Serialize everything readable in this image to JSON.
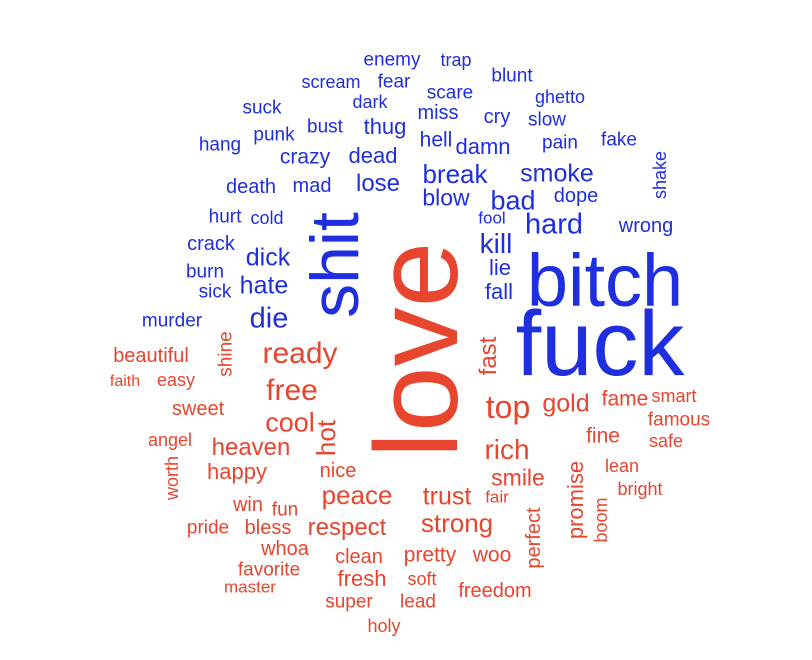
{
  "colors": {
    "negative": "#1f2fe0",
    "positive": "#e8452e",
    "background": "#ffffff"
  },
  "words": [
    {
      "t": "enemy",
      "s": "negative"
    },
    {
      "t": "trap",
      "s": "negative"
    },
    {
      "t": "blunt",
      "s": "negative"
    },
    {
      "t": "scream",
      "s": "negative"
    },
    {
      "t": "fear",
      "s": "negative"
    },
    {
      "t": "scare",
      "s": "negative"
    },
    {
      "t": "ghetto",
      "s": "negative"
    },
    {
      "t": "dark",
      "s": "negative"
    },
    {
      "t": "suck",
      "s": "negative"
    },
    {
      "t": "miss",
      "s": "negative"
    },
    {
      "t": "cry",
      "s": "negative"
    },
    {
      "t": "slow",
      "s": "negative"
    },
    {
      "t": "bust",
      "s": "negative"
    },
    {
      "t": "thug",
      "s": "negative"
    },
    {
      "t": "punk",
      "s": "negative"
    },
    {
      "t": "hang",
      "s": "negative"
    },
    {
      "t": "hell",
      "s": "negative"
    },
    {
      "t": "pain",
      "s": "negative"
    },
    {
      "t": "fake",
      "s": "negative"
    },
    {
      "t": "damn",
      "s": "negative"
    },
    {
      "t": "crazy",
      "s": "negative"
    },
    {
      "t": "dead",
      "s": "negative"
    },
    {
      "t": "shake",
      "s": "negative"
    },
    {
      "t": "break",
      "s": "negative"
    },
    {
      "t": "smoke",
      "s": "negative"
    },
    {
      "t": "death",
      "s": "negative"
    },
    {
      "t": "mad",
      "s": "negative"
    },
    {
      "t": "lose",
      "s": "negative"
    },
    {
      "t": "dope",
      "s": "negative"
    },
    {
      "t": "blow",
      "s": "negative"
    },
    {
      "t": "bad",
      "s": "negative"
    },
    {
      "t": "hurt",
      "s": "negative"
    },
    {
      "t": "cold",
      "s": "negative"
    },
    {
      "t": "shit",
      "s": "negative"
    },
    {
      "t": "fool",
      "s": "negative"
    },
    {
      "t": "hard",
      "s": "negative"
    },
    {
      "t": "wrong",
      "s": "negative"
    },
    {
      "t": "crack",
      "s": "negative"
    },
    {
      "t": "kill",
      "s": "negative"
    },
    {
      "t": "dick",
      "s": "negative"
    },
    {
      "t": "burn",
      "s": "negative"
    },
    {
      "t": "lie",
      "s": "negative"
    },
    {
      "t": "bitch",
      "s": "negative"
    },
    {
      "t": "hate",
      "s": "negative"
    },
    {
      "t": "sick",
      "s": "negative"
    },
    {
      "t": "fall",
      "s": "negative"
    },
    {
      "t": "die",
      "s": "negative"
    },
    {
      "t": "murder",
      "s": "negative"
    },
    {
      "t": "fuck",
      "s": "negative"
    },
    {
      "t": "shine",
      "s": "positive"
    },
    {
      "t": "ready",
      "s": "positive"
    },
    {
      "t": "beautiful",
      "s": "positive"
    },
    {
      "t": "fast",
      "s": "positive"
    },
    {
      "t": "faith",
      "s": "positive"
    },
    {
      "t": "easy",
      "s": "positive"
    },
    {
      "t": "free",
      "s": "positive"
    },
    {
      "t": "love",
      "s": "positive"
    },
    {
      "t": "fame",
      "s": "positive"
    },
    {
      "t": "smart",
      "s": "positive"
    },
    {
      "t": "gold",
      "s": "positive"
    },
    {
      "t": "sweet",
      "s": "positive"
    },
    {
      "t": "top",
      "s": "positive"
    },
    {
      "t": "cool",
      "s": "positive"
    },
    {
      "t": "famous",
      "s": "positive"
    },
    {
      "t": "hot",
      "s": "positive"
    },
    {
      "t": "fine",
      "s": "positive"
    },
    {
      "t": "safe",
      "s": "positive"
    },
    {
      "t": "angel",
      "s": "positive"
    },
    {
      "t": "heaven",
      "s": "positive"
    },
    {
      "t": "rich",
      "s": "positive"
    },
    {
      "t": "lean",
      "s": "positive"
    },
    {
      "t": "happy",
      "s": "positive"
    },
    {
      "t": "nice",
      "s": "positive"
    },
    {
      "t": "worth",
      "s": "positive"
    },
    {
      "t": "smile",
      "s": "positive"
    },
    {
      "t": "promise",
      "s": "positive"
    },
    {
      "t": "bright",
      "s": "positive"
    },
    {
      "t": "peace",
      "s": "positive"
    },
    {
      "t": "trust",
      "s": "positive"
    },
    {
      "t": "win",
      "s": "positive"
    },
    {
      "t": "fun",
      "s": "positive"
    },
    {
      "t": "fair",
      "s": "positive"
    },
    {
      "t": "boom",
      "s": "positive"
    },
    {
      "t": "pride",
      "s": "positive"
    },
    {
      "t": "bless",
      "s": "positive"
    },
    {
      "t": "strong",
      "s": "positive"
    },
    {
      "t": "respect",
      "s": "positive"
    },
    {
      "t": "perfect",
      "s": "positive"
    },
    {
      "t": "whoa",
      "s": "positive"
    },
    {
      "t": "clean",
      "s": "positive"
    },
    {
      "t": "pretty",
      "s": "positive"
    },
    {
      "t": "woo",
      "s": "positive"
    },
    {
      "t": "favorite",
      "s": "positive"
    },
    {
      "t": "master",
      "s": "positive"
    },
    {
      "t": "fresh",
      "s": "positive"
    },
    {
      "t": "soft",
      "s": "positive"
    },
    {
      "t": "freedom",
      "s": "positive"
    },
    {
      "t": "super",
      "s": "positive"
    },
    {
      "t": "lead",
      "s": "positive"
    },
    {
      "t": "holy",
      "s": "positive"
    }
  ]
}
